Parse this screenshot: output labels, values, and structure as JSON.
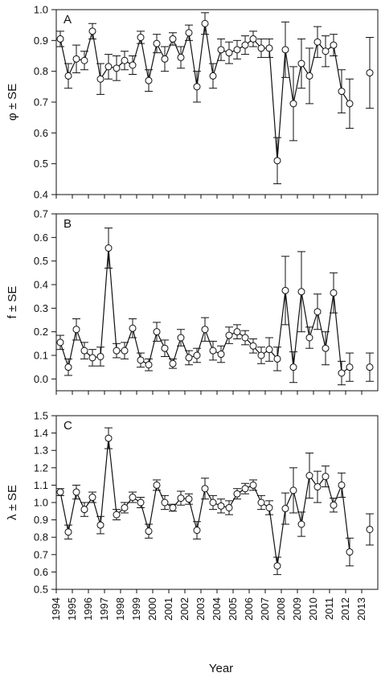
{
  "figure": {
    "xlabel": "Year",
    "years": [
      "1994",
      "1995",
      "1996",
      "1997",
      "1998",
      "1999",
      "2000",
      "2001",
      "2002",
      "2003",
      "2004",
      "2005",
      "2006",
      "2007",
      "2008",
      "2009",
      "2010",
      "2011",
      "2012",
      "2013"
    ]
  },
  "chart_data": [
    {
      "type": "line",
      "panel_label": "A",
      "ylabel": "φ ± SE",
      "xlim": [
        1994,
        2014
      ],
      "ylim": [
        0.4,
        1.0
      ],
      "yticks": [
        "0.4",
        "0.5",
        "0.6",
        "0.7",
        "0.8",
        "0.9",
        "1.0"
      ],
      "series": [
        {
          "x": [
            1994.25,
            1994.75,
            1995.25,
            1995.75,
            1996.25,
            1996.75,
            1997.25,
            1997.75,
            1998.25,
            1998.75,
            1999.25,
            1999.75,
            2000.25,
            2000.75,
            2001.25,
            2001.75,
            2002.25,
            2002.75,
            2003.25,
            2003.75,
            2004.25,
            2004.75,
            2005.25,
            2005.75,
            2006.25,
            2006.75,
            2007.25,
            2007.75,
            2008.25,
            2008.75,
            2009.25,
            2009.75,
            2010.25,
            2010.75,
            2011.25,
            2011.75,
            2012.25,
            2013.5
          ],
          "y": [
            0.905,
            0.785,
            0.84,
            0.835,
            0.93,
            0.775,
            0.815,
            0.81,
            0.835,
            0.82,
            0.91,
            0.77,
            0.89,
            0.84,
            0.905,
            0.845,
            0.925,
            0.75,
            0.955,
            0.785,
            0.87,
            0.86,
            0.87,
            0.885,
            0.905,
            0.875,
            0.875,
            0.51,
            0.87,
            0.695,
            0.825,
            0.785,
            0.895,
            0.865,
            0.885,
            0.735,
            0.695,
            0.795
          ],
          "err": [
            0.025,
            0.04,
            0.045,
            0.03,
            0.025,
            0.05,
            0.04,
            0.04,
            0.03,
            0.03,
            0.02,
            0.035,
            0.03,
            0.04,
            0.02,
            0.035,
            0.025,
            0.05,
            0.035,
            0.04,
            0.035,
            0.035,
            0.03,
            0.03,
            0.025,
            0.03,
            0.03,
            0.075,
            0.09,
            0.12,
            0.08,
            0.09,
            0.05,
            0.05,
            0.035,
            0.07,
            0.08,
            0.115
          ]
        }
      ]
    },
    {
      "type": "line",
      "panel_label": "B",
      "ylabel": "f ± SE",
      "xlim": [
        1994,
        2014
      ],
      "ylim": [
        -0.05,
        0.7
      ],
      "yticks": [
        "0.0",
        "0.1",
        "0.2",
        "0.3",
        "0.4",
        "0.5",
        "0.6",
        "0.7"
      ],
      "series": [
        {
          "x": [
            1994.25,
            1994.75,
            1995.25,
            1995.75,
            1996.25,
            1996.75,
            1997.25,
            1997.75,
            1998.25,
            1998.75,
            1999.25,
            1999.75,
            2000.25,
            2000.75,
            2001.25,
            2001.75,
            2002.25,
            2002.75,
            2003.25,
            2003.75,
            2004.25,
            2004.75,
            2005.25,
            2005.75,
            2006.25,
            2006.75,
            2007.25,
            2007.75,
            2008.25,
            2008.75,
            2009.25,
            2009.75,
            2010.25,
            2010.75,
            2011.25,
            2011.75,
            2012.25,
            2013.5
          ],
          "y": [
            0.155,
            0.05,
            0.21,
            0.12,
            0.09,
            0.095,
            0.555,
            0.12,
            0.12,
            0.215,
            0.08,
            0.06,
            0.2,
            0.13,
            0.065,
            0.175,
            0.09,
            0.1,
            0.21,
            0.12,
            0.105,
            0.185,
            0.2,
            0.175,
            0.14,
            0.1,
            0.125,
            0.085,
            0.375,
            0.05,
            0.37,
            0.175,
            0.285,
            0.13,
            0.365,
            0.025,
            0.05,
            0.05
          ],
          "err": [
            0.03,
            0.035,
            0.045,
            0.035,
            0.035,
            0.04,
            0.085,
            0.03,
            0.035,
            0.04,
            0.03,
            0.025,
            0.04,
            0.035,
            0.02,
            0.035,
            0.03,
            0.03,
            0.05,
            0.04,
            0.035,
            0.035,
            0.03,
            0.03,
            0.03,
            0.035,
            0.05,
            0.05,
            0.145,
            0.065,
            0.17,
            0.045,
            0.075,
            0.07,
            0.085,
            0.05,
            0.06,
            0.06
          ]
        }
      ]
    },
    {
      "type": "line",
      "panel_label": "C",
      "ylabel": "λ ± SE",
      "xlim": [
        1994,
        2014
      ],
      "ylim": [
        0.5,
        1.5
      ],
      "yticks": [
        "0.5",
        "0.6",
        "0.7",
        "0.8",
        "0.9",
        "1.0",
        "1.1",
        "1.2",
        "1.3",
        "1.4",
        "1.5"
      ],
      "series": [
        {
          "x": [
            1994.25,
            1994.75,
            1995.25,
            1995.75,
            1996.25,
            1996.75,
            1997.25,
            1997.75,
            1998.25,
            1998.75,
            1999.25,
            1999.75,
            2000.25,
            2000.75,
            2001.25,
            2001.75,
            2002.25,
            2002.75,
            2003.25,
            2003.75,
            2004.25,
            2004.75,
            2005.25,
            2005.75,
            2006.25,
            2006.75,
            2007.25,
            2007.75,
            2008.25,
            2008.75,
            2009.25,
            2009.75,
            2010.25,
            2010.75,
            2011.25,
            2011.75,
            2012.25,
            2013.5
          ],
          "y": [
            1.06,
            0.83,
            1.06,
            0.96,
            1.03,
            0.87,
            1.37,
            0.93,
            0.97,
            1.03,
            1.0,
            0.835,
            1.1,
            1.0,
            0.97,
            1.025,
            1.02,
            0.84,
            1.08,
            1.0,
            0.98,
            0.97,
            1.05,
            1.08,
            1.1,
            1.0,
            0.97,
            0.635,
            0.965,
            1.07,
            0.875,
            1.155,
            1.09,
            1.15,
            0.985,
            1.1,
            0.715,
            0.845
          ],
          "err": [
            0.02,
            0.04,
            0.04,
            0.04,
            0.03,
            0.05,
            0.06,
            0.03,
            0.03,
            0.03,
            0.03,
            0.04,
            0.03,
            0.04,
            0.02,
            0.04,
            0.03,
            0.05,
            0.06,
            0.04,
            0.04,
            0.04,
            0.03,
            0.03,
            0.03,
            0.04,
            0.04,
            0.05,
            0.09,
            0.13,
            0.07,
            0.13,
            0.09,
            0.06,
            0.04,
            0.07,
            0.08,
            0.09
          ]
        }
      ]
    }
  ]
}
